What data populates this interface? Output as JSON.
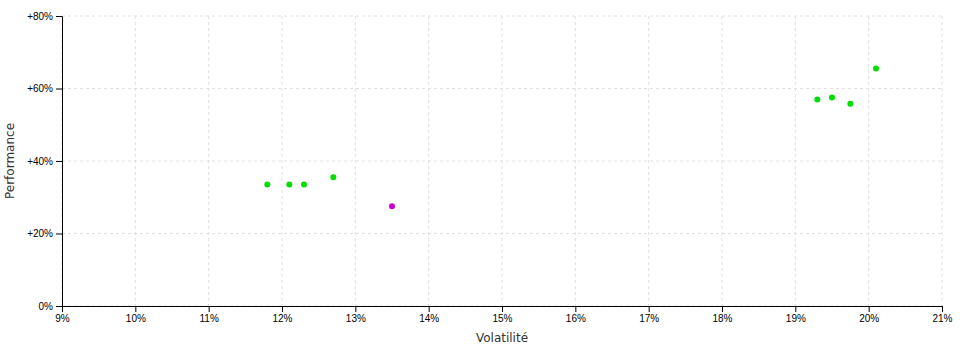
{
  "chart_data": {
    "type": "scatter",
    "xlabel": "Volatilité",
    "ylabel": "Performance",
    "xlim": [
      0.09,
      0.21
    ],
    "ylim": [
      0.0,
      0.8
    ],
    "xticks": [
      {
        "value": 0.09,
        "label": "9%"
      },
      {
        "value": 0.1,
        "label": "10%"
      },
      {
        "value": 0.11,
        "label": "11%"
      },
      {
        "value": 0.12,
        "label": "12%"
      },
      {
        "value": 0.13,
        "label": "13%"
      },
      {
        "value": 0.14,
        "label": "14%"
      },
      {
        "value": 0.15,
        "label": "15%"
      },
      {
        "value": 0.16,
        "label": "16%"
      },
      {
        "value": 0.17,
        "label": "17%"
      },
      {
        "value": 0.18,
        "label": "18%"
      },
      {
        "value": 0.19,
        "label": "19%"
      },
      {
        "value": 0.2,
        "label": "20%"
      },
      {
        "value": 0.21,
        "label": "21%"
      }
    ],
    "yticks": [
      {
        "value": 0.0,
        "label": "0%"
      },
      {
        "value": 0.2,
        "label": "+20%"
      },
      {
        "value": 0.4,
        "label": "+40%"
      },
      {
        "value": 0.6,
        "label": "+60%"
      },
      {
        "value": 0.8,
        "label": "+80%"
      }
    ],
    "grid": true,
    "series": [
      {
        "color": "#00dd00",
        "x": [
          0.118,
          0.121,
          0.123,
          0.127,
          0.193,
          0.195,
          0.1975,
          0.201
        ],
        "values": [
          0.335,
          0.335,
          0.335,
          0.355,
          0.57,
          0.575,
          0.558,
          0.655
        ]
      },
      {
        "color": "#cc00cc",
        "x": [
          0.135
        ],
        "values": [
          0.275
        ]
      }
    ]
  }
}
